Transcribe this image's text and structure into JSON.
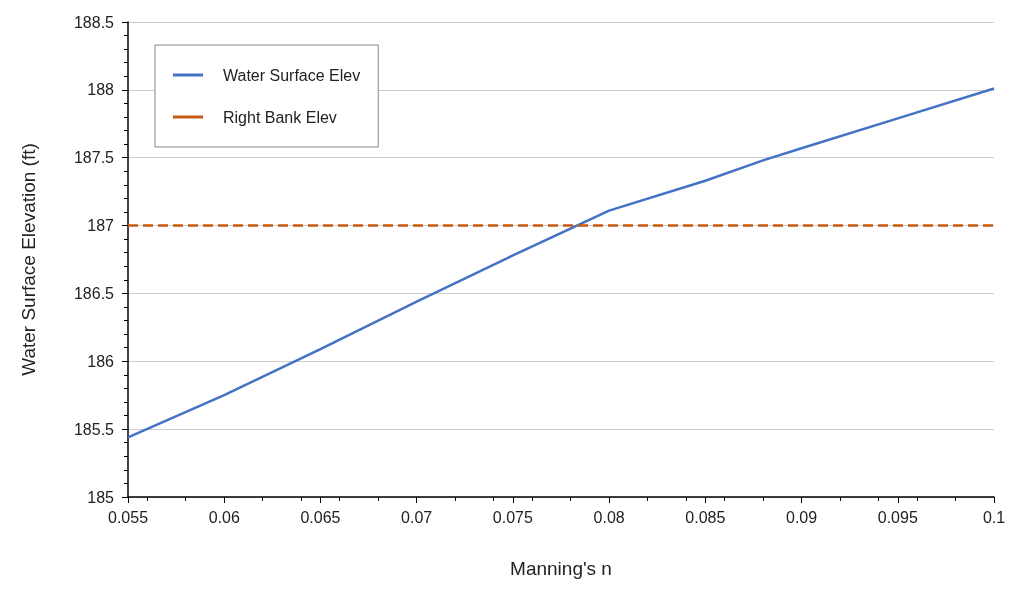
{
  "chart_data": {
    "type": "line",
    "xlabel": "Manning's n",
    "ylabel": "Water Surface Elevation (ft)",
    "xlim": [
      0.055,
      0.1
    ],
    "xticks": [
      0.055,
      0.06,
      0.065,
      0.07,
      0.075,
      0.08,
      0.085,
      0.09,
      0.095,
      0.1
    ],
    "ylim": [
      185,
      188.5
    ],
    "yticks": [
      185,
      185.5,
      186,
      186.5,
      187,
      187.5,
      188,
      188.5
    ],
    "grid": "y",
    "legend": "top left",
    "marker": "none",
    "series": [
      {
        "name": "Water Surface Elev",
        "color": "#4472c4",
        "line_style": "solid",
        "x": [
          0.055,
          0.06,
          0.065,
          0.07,
          0.075,
          0.08,
          0.085,
          0.088,
          0.09,
          0.095,
          0.1
        ],
        "values": [
          185.44,
          185.75,
          186.09,
          186.44,
          186.78,
          187.11,
          187.33,
          187.48,
          187.57,
          187.79,
          188.01
        ]
      },
      {
        "name": "Right Bank Elev",
        "color": "#c55a11",
        "line_style": "dashed",
        "x": [
          0.055,
          0.1
        ],
        "values": [
          187,
          187
        ]
      }
    ]
  }
}
